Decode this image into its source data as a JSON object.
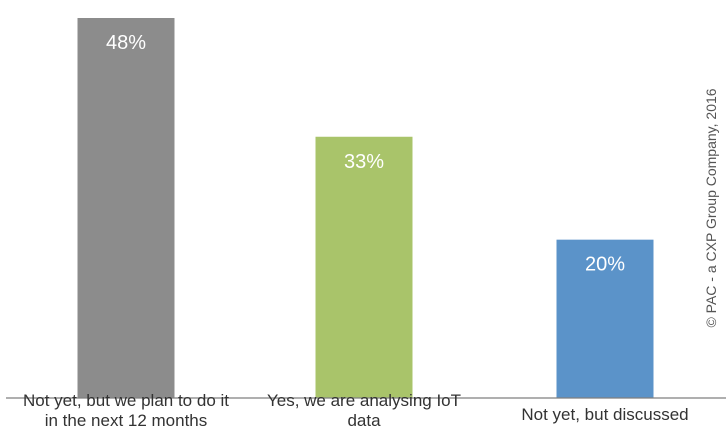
{
  "chart_data": {
    "type": "bar",
    "categories": [
      "Not yet, but we plan to do it in the next 12 months",
      "Yes, we are analysing IoT data",
      "Not yet, but discussed"
    ],
    "category_lines": [
      [
        "Not yet, but we plan to do it",
        "in the next 12 months"
      ],
      [
        "Yes, we are analysing IoT",
        "data"
      ],
      [
        "Not yet, but discussed"
      ]
    ],
    "values": [
      48,
      33,
      20
    ],
    "data_labels": [
      "48%",
      "33%",
      "20%"
    ],
    "colors": [
      "#8c8c8c",
      "#a9c46a",
      "#5b93c9"
    ],
    "unit": "%",
    "ylim": [
      0,
      50
    ],
    "grid": false,
    "title": "",
    "xlabel": "",
    "ylabel": ""
  },
  "copyright": "© PAC - a CXP Group Company, 2016"
}
